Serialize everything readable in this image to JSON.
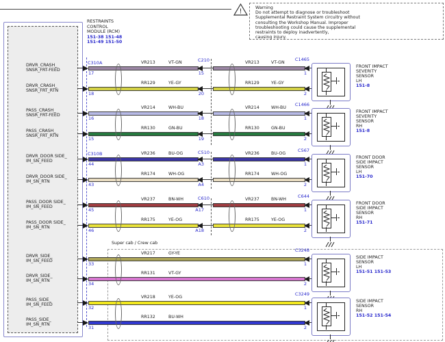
{
  "warning": {
    "title": "Warning",
    "lines": [
      "Do not attempt to diagnose or troubleshoot",
      "Supplemental Restraint System circuitry without",
      "consulting the Workshop Manual. Improper",
      "troubleshooting could cause the supplemental",
      "restraints to deploy inadvertently,",
      "causing injury."
    ]
  },
  "rcm": {
    "title_lines": [
      "RESTRAINTS",
      "CONTROL",
      "MODULE (RCM)"
    ],
    "refs": [
      "151-38  151-48",
      "151-49  151-50"
    ]
  },
  "left_connectors": [
    "C310A",
    "C310B"
  ],
  "mid_connectors": [
    {
      "label": "C210"
    },
    {
      "label": "C510"
    },
    {
      "label": "C610"
    }
  ],
  "section_label": "Super cab / Crew cab",
  "wires": [
    {
      "signal": [
        "DRVR_CRASH_",
        "SNSR_FRT-FEED"
      ],
      "rcm_pin": "17",
      "circuit": "VR213",
      "color_code": "VT-GN",
      "mid_pin": "15",
      "color": "#9c87a5"
    },
    {
      "signal": [
        "DRVR_CRASH_",
        "SNSR_FRT_RTN"
      ],
      "rcm_pin": "18",
      "circuit": "RR129",
      "color_code": "YE-GY",
      "mid_pin": "20",
      "color": "#d4d245"
    },
    {
      "signal": [
        "PASS_CRASH_",
        "SNSR_FRT-FEED"
      ],
      "rcm_pin": "16",
      "circuit": "VR214",
      "color_code": "WH-BU",
      "mid_pin": "18",
      "color": "#b7bae6"
    },
    {
      "signal": [
        "PASS_CRASH_",
        "SNSR_FRT_RTN"
      ],
      "rcm_pin": "15",
      "circuit": "RR130",
      "color_code": "GN-BU",
      "mid_pin": "19",
      "color": "#26793f"
    },
    {
      "signal": [
        "DRVR_DOOR SIDE_",
        "IM_SN_FEED"
      ],
      "rcm_pin": "44",
      "circuit": "VR236",
      "color_code": "BU-OG",
      "mid_pin": "A3",
      "color": "#3b35a5"
    },
    {
      "signal": [
        "DRVR_DOOR SIDE_",
        "IM_SN_RTN"
      ],
      "rcm_pin": "43",
      "circuit": "RR174",
      "color_code": "WH-OG",
      "mid_pin": "A4",
      "color": "#e9dcc0"
    },
    {
      "signal": [
        "PASS_DOOR SIDE_",
        "IM_SN_FEED"
      ],
      "rcm_pin": "45",
      "circuit": "VR237",
      "color_code": "BN-WH",
      "mid_pin": "A17",
      "color": "#9e3c40"
    },
    {
      "signal": [
        "PASS_DOOR SIDE_",
        "IM_SN_RTN"
      ],
      "rcm_pin": "46",
      "circuit": "RR175",
      "color_code": "YE-OG",
      "mid_pin": "A18",
      "color": "#e9e23a"
    },
    {
      "signal": [
        "DRVR_SIDE_",
        "IM_SN_FEED"
      ],
      "rcm_pin": "33",
      "circuit": "VR217",
      "color_code": "GY-YE",
      "mid_pin": "",
      "color": "#aca458"
    },
    {
      "signal": [
        "DRVR_SIDE_",
        "IM_SN_RTN"
      ],
      "rcm_pin": "34",
      "circuit": "RR131",
      "color_code": "VT-GY",
      "mid_pin": "",
      "color": "#d777d0"
    },
    {
      "signal": [
        "PASS_SIDE_",
        "IM_SN_FEED"
      ],
      "rcm_pin": "32",
      "circuit": "VR218",
      "color_code": "YE-OG",
      "mid_pin": "",
      "color": "#f2e81e"
    },
    {
      "signal": [
        "PASS_SIDE_",
        "IM_SN_RTN"
      ],
      "rcm_pin": "31",
      "circuit": "RR132",
      "color_code": "BU-WH",
      "mid_pin": "",
      "color": "#3138cf"
    }
  ],
  "sensors": [
    {
      "connector": "C1465",
      "pins": [
        "1",
        "2"
      ],
      "name_lines": [
        "FRONT IMPACT",
        "SEVERITY",
        "SENSOR",
        "LH"
      ],
      "refs": "151-8"
    },
    {
      "connector": "C1466",
      "pins": [
        "1",
        "2"
      ],
      "name_lines": [
        "FRONT IMPACT",
        "SEVERITY",
        "SENSOR",
        "RH"
      ],
      "refs": "151-8"
    },
    {
      "connector": "C567",
      "pins": [
        "1",
        "2"
      ],
      "name_lines": [
        "FRONT DOOR",
        "SIDE IMPACT",
        "SENSOR",
        "LH"
      ],
      "refs": "151-70"
    },
    {
      "connector": "C644",
      "pins": [
        "1",
        "2"
      ],
      "name_lines": [
        "FRONT DOOR",
        "SIDE IMPACT",
        "SENSOR",
        "RH"
      ],
      "refs": "151-71"
    },
    {
      "connector": "C3248",
      "pins": [
        "1",
        "2"
      ],
      "name_lines": [
        "SIDE IMPACT",
        "SENSOR",
        "LH"
      ],
      "refs": "151-51  151-53"
    },
    {
      "connector": "C3249",
      "pins": [
        "1",
        "2"
      ],
      "name_lines": [
        "SIDE IMPACT",
        "SENSOR",
        "RH"
      ],
      "refs": "151-52  151-54"
    }
  ],
  "colors": {
    "label_blue": "#2626cc",
    "rcm_fill": "#ededed",
    "box_blue": "#7a7ac6"
  }
}
